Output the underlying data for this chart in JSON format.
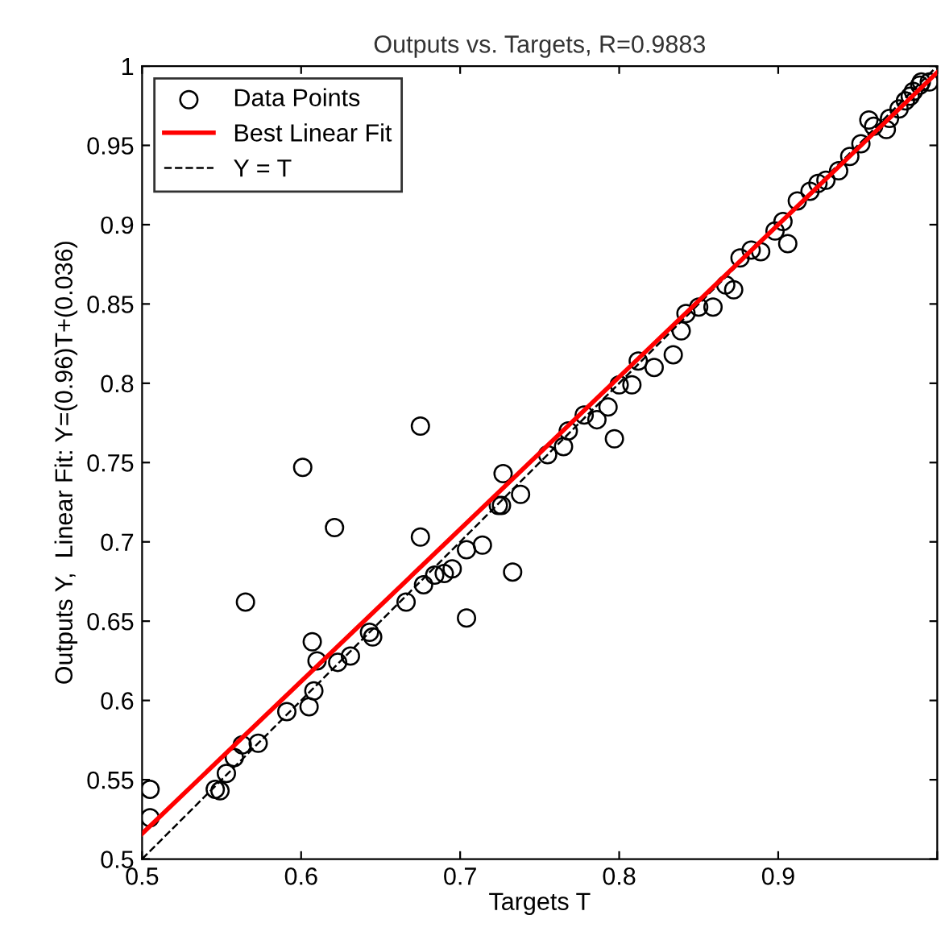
{
  "chart_data": {
    "type": "scatter",
    "title": "Outputs vs. Targets, R=0.9883",
    "xlabel": "Targets T",
    "ylabel": "Outputs Y,  Linear Fit: Y=(0.96)T+(0.036)",
    "xlim": [
      0.5,
      1
    ],
    "ylim": [
      0.5,
      1
    ],
    "xticks": [
      0.5,
      0.6,
      0.7,
      0.8,
      0.9,
      {
        "value": 1,
        "label": null
      }
    ],
    "yticks": [
      0.5,
      0.55,
      0.6,
      0.65,
      0.7,
      0.75,
      0.8,
      0.85,
      0.9,
      0.95,
      1
    ],
    "grid": false,
    "legend": "top left",
    "series": [
      {
        "name": "Data Points",
        "marker": "circle",
        "color": "#000000",
        "x": [
          0.505,
          0.505,
          0.546,
          0.549,
          0.553,
          0.558,
          0.563,
          0.573,
          0.565,
          0.591,
          0.605,
          0.608,
          0.601,
          0.607,
          0.61,
          0.623,
          0.631,
          0.621,
          0.643,
          0.645,
          0.666,
          0.675,
          0.675,
          0.677,
          0.684,
          0.69,
          0.695,
          0.704,
          0.714,
          0.704,
          0.724,
          0.727,
          0.733,
          0.726,
          0.738,
          0.755,
          0.765,
          0.768,
          0.778,
          0.786,
          0.797,
          0.793,
          0.8,
          0.808,
          0.812,
          0.822,
          0.834,
          0.839,
          0.842,
          0.85,
          0.859,
          0.867,
          0.872,
          0.876,
          0.883,
          0.889,
          0.898,
          0.906,
          0.903,
          0.912,
          0.92,
          0.925,
          0.93,
          0.938,
          0.945,
          0.952,
          0.957,
          0.96,
          0.968,
          0.97,
          0.976,
          0.98,
          0.983,
          0.985,
          0.989,
          0.99,
          0.995
        ],
        "values": [
          0.544,
          0.526,
          0.544,
          0.543,
          0.554,
          0.564,
          0.572,
          0.573,
          0.662,
          0.593,
          0.596,
          0.606,
          0.747,
          0.637,
          0.625,
          0.624,
          0.628,
          0.709,
          0.643,
          0.64,
          0.662,
          0.773,
          0.703,
          0.673,
          0.679,
          0.68,
          0.683,
          0.695,
          0.698,
          0.652,
          0.723,
          0.743,
          0.681,
          0.723,
          0.73,
          0.755,
          0.76,
          0.77,
          0.78,
          0.777,
          0.765,
          0.785,
          0.799,
          0.799,
          0.814,
          0.81,
          0.818,
          0.833,
          0.844,
          0.848,
          0.848,
          0.862,
          0.859,
          0.879,
          0.884,
          0.883,
          0.896,
          0.888,
          0.902,
          0.915,
          0.921,
          0.926,
          0.928,
          0.934,
          0.943,
          0.951,
          0.966,
          0.962,
          0.96,
          0.967,
          0.973,
          0.978,
          0.981,
          0.984,
          0.988,
          0.99,
          0.99
        ]
      },
      {
        "name": "Best Linear Fit",
        "type": "line",
        "line_style": "solid",
        "color": "#ff0000",
        "x": [
          0.5,
          1
        ],
        "values": [
          0.516,
          0.996
        ]
      },
      {
        "name": "Y = T",
        "type": "line",
        "line_style": "dashed",
        "color": "#000000",
        "x": [
          0.5,
          1
        ],
        "values": [
          0.5,
          1
        ]
      }
    ]
  }
}
